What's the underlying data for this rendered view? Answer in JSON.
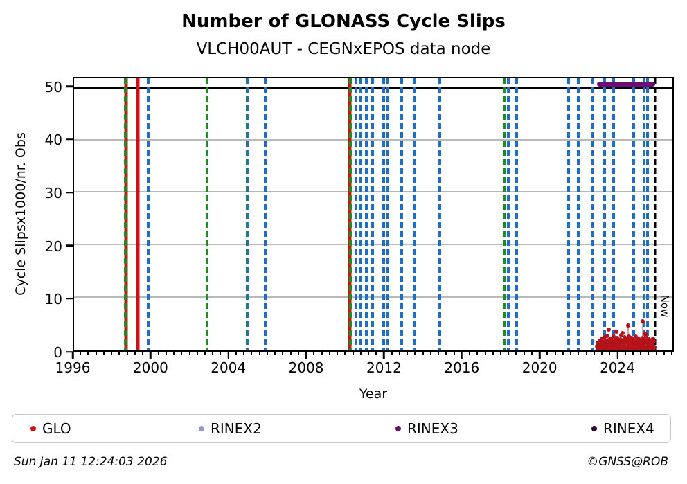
{
  "colors": {
    "glo_red": "#cf1116",
    "scatter_red": "#b5121a",
    "green_event": "#1e8c1e",
    "blue_event": "#1f6dc4",
    "rinex2_lavender": "#9494d6",
    "rinex3_purple": "#6d0c74",
    "rinex4_dark": "#2e0a33",
    "gridline_gray": "#b9b9b9",
    "axis_black": "#000000"
  },
  "footer": {
    "timestamp": "Sun Jan 11 12:24:03 2026",
    "credit": "©GNSS@ROB"
  },
  "legend": {
    "items": [
      {
        "label": "GLO",
        "color": "#cf1116"
      },
      {
        "label": "RINEX2",
        "color": "#9494d6"
      },
      {
        "label": "RINEX3",
        "color": "#6d0c74"
      },
      {
        "label": "RINEX4",
        "color": "#2e0a33"
      }
    ]
  },
  "chart_data": {
    "type": "scatter",
    "title": "Number of GLONASS Cycle Slips",
    "subtitle": "VLCH00AUT - CEGNxEPOS data node",
    "xlabel": "Year",
    "ylabel": "Cycle Slipsx1000/nr. Obs",
    "xlim": [
      1996,
      2026.9
    ],
    "ylim": [
      0,
      51.8
    ],
    "xticks": [
      1996,
      2000,
      2004,
      2008,
      2012,
      2016,
      2020,
      2024
    ],
    "yticks": [
      0,
      10,
      20,
      30,
      40,
      50
    ],
    "minor_tick_step": 0.4,
    "grid": "horizontal-gray",
    "legend_position": "bottom",
    "cap_line_y": 50,
    "now_label": "Now",
    "now_line_year": 2026.0,
    "event_lines": {
      "red_solid": [
        1998.67,
        1999.3,
        2010.25
      ],
      "green_dashed": [
        1998.65,
        2002.88,
        2004.93,
        2010.28,
        2018.21
      ],
      "blue_dashed": [
        1999.83,
        2004.97,
        2005.86,
        2010.57,
        2010.82,
        2011.1,
        2011.4,
        2011.97,
        2012.15,
        2012.93,
        2013.56,
        2014.88,
        2018.43,
        2018.85,
        2021.52,
        2022.02,
        2022.77,
        2023.4,
        2023.85,
        2024.9,
        2025.45,
        2025.62
      ]
    },
    "rinex3_line": {
      "value": 50.6,
      "x_start": 2023.0,
      "x_end": 2026.0
    },
    "glo_scatter": [
      [
        2023.0,
        0.8
      ],
      [
        2023.05,
        1.4
      ],
      [
        2023.1,
        1.1
      ],
      [
        2023.15,
        1.9
      ],
      [
        2023.2,
        1.3
      ],
      [
        2023.25,
        2.2
      ],
      [
        2023.3,
        1.6
      ],
      [
        2023.35,
        1.0
      ],
      [
        2023.4,
        2.5
      ],
      [
        2023.45,
        1.8
      ],
      [
        2023.5,
        1.2
      ],
      [
        2023.55,
        2.8
      ],
      [
        2023.6,
        2.0
      ],
      [
        2023.65,
        1.5
      ],
      [
        2023.7,
        2.3
      ],
      [
        2023.75,
        1.1
      ],
      [
        2023.8,
        1.7
      ],
      [
        2023.85,
        2.6
      ],
      [
        2023.9,
        1.4
      ],
      [
        2023.95,
        2.0
      ],
      [
        2024.0,
        1.2
      ],
      [
        2024.05,
        2.4
      ],
      [
        2024.1,
        1.7
      ],
      [
        2024.15,
        1.0
      ],
      [
        2024.2,
        2.1
      ],
      [
        2024.25,
        2.9
      ],
      [
        2024.3,
        1.5
      ],
      [
        2024.35,
        1.9
      ],
      [
        2024.4,
        1.1
      ],
      [
        2024.45,
        2.5
      ],
      [
        2024.5,
        1.6
      ],
      [
        2024.55,
        2.2
      ],
      [
        2024.6,
        1.3
      ],
      [
        2024.65,
        2.7
      ],
      [
        2024.7,
        1.8
      ],
      [
        2024.75,
        1.2
      ],
      [
        2024.8,
        2.4
      ],
      [
        2024.85,
        1.6
      ],
      [
        2024.9,
        2.0
      ],
      [
        2024.95,
        1.3
      ],
      [
        2025.0,
        2.6
      ],
      [
        2025.05,
        1.7
      ],
      [
        2025.1,
        1.1
      ],
      [
        2025.15,
        2.2
      ],
      [
        2025.2,
        1.5
      ],
      [
        2025.25,
        1.9
      ],
      [
        2025.3,
        1.2
      ],
      [
        2025.35,
        2.4
      ],
      [
        2025.4,
        1.6
      ],
      [
        2025.45,
        2.0
      ],
      [
        2025.5,
        1.4
      ],
      [
        2025.55,
        2.7
      ],
      [
        2025.6,
        1.8
      ],
      [
        2025.65,
        1.2
      ],
      [
        2025.7,
        2.1
      ],
      [
        2025.75,
        1.5
      ],
      [
        2025.8,
        1.9
      ],
      [
        2025.85,
        1.3
      ],
      [
        2025.9,
        2.3
      ],
      [
        2025.95,
        1.7
      ],
      [
        2023.025,
        0.3
      ],
      [
        2023.075,
        0.6
      ],
      [
        2023.125,
        0.4
      ],
      [
        2023.175,
        0.8
      ],
      [
        2023.225,
        0.5
      ],
      [
        2023.275,
        0.9
      ],
      [
        2023.325,
        0.35
      ],
      [
        2023.375,
        0.7
      ],
      [
        2023.425,
        0.45
      ],
      [
        2023.475,
        0.85
      ],
      [
        2023.525,
        0.55
      ],
      [
        2023.575,
        0.25
      ],
      [
        2023.625,
        0.65
      ],
      [
        2023.675,
        0.4
      ],
      [
        2023.725,
        0.75
      ],
      [
        2023.775,
        0.3
      ],
      [
        2023.825,
        0.6
      ],
      [
        2023.875,
        0.5
      ],
      [
        2023.925,
        0.8
      ],
      [
        2023.975,
        0.35
      ],
      [
        2024.025,
        0.7
      ],
      [
        2024.075,
        0.45
      ],
      [
        2024.125,
        0.85
      ],
      [
        2024.175,
        0.55
      ],
      [
        2024.225,
        0.25
      ],
      [
        2024.275,
        0.65
      ],
      [
        2024.325,
        0.4
      ],
      [
        2024.375,
        0.75
      ],
      [
        2024.425,
        0.3
      ],
      [
        2024.475,
        0.6
      ],
      [
        2024.525,
        0.5
      ],
      [
        2024.575,
        0.8
      ],
      [
        2024.625,
        0.35
      ],
      [
        2024.675,
        0.7
      ],
      [
        2024.725,
        0.45
      ],
      [
        2024.775,
        0.85
      ],
      [
        2024.825,
        0.55
      ],
      [
        2024.875,
        0.25
      ],
      [
        2024.925,
        0.65
      ],
      [
        2024.975,
        0.4
      ],
      [
        2025.025,
        0.75
      ],
      [
        2025.075,
        0.3
      ],
      [
        2025.125,
        0.6
      ],
      [
        2025.175,
        0.5
      ],
      [
        2025.225,
        0.8
      ],
      [
        2025.275,
        0.35
      ],
      [
        2025.325,
        0.7
      ],
      [
        2025.375,
        0.45
      ],
      [
        2025.425,
        0.85
      ],
      [
        2025.475,
        0.55
      ],
      [
        2025.525,
        0.25
      ],
      [
        2025.575,
        0.65
      ],
      [
        2025.625,
        0.4
      ],
      [
        2025.675,
        0.75
      ],
      [
        2025.725,
        0.3
      ],
      [
        2025.775,
        0.6
      ],
      [
        2025.825,
        0.5
      ],
      [
        2025.875,
        0.8
      ],
      [
        2025.925,
        0.35
      ],
      [
        2025.97,
        0.6
      ],
      [
        2023.62,
        4.0
      ],
      [
        2024.02,
        3.6
      ],
      [
        2024.32,
        3.3
      ],
      [
        2024.62,
        4.7
      ],
      [
        2025.36,
        5.5
      ],
      [
        2025.52,
        3.1
      ]
    ]
  }
}
